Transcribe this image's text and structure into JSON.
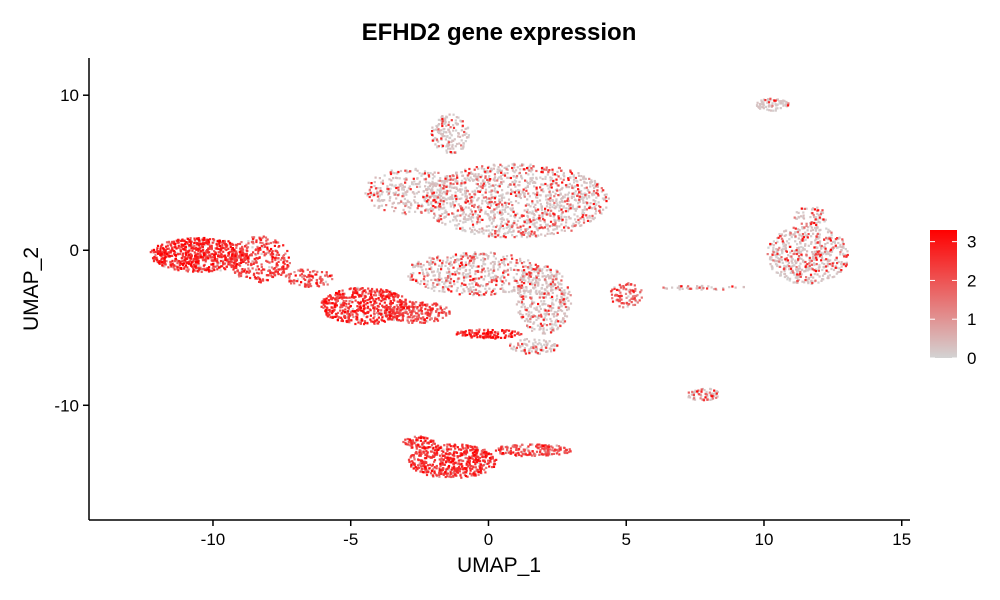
{
  "chart_data": {
    "type": "scatter",
    "title": "EFHD2 gene expression",
    "xlabel": "UMAP_1",
    "ylabel": "UMAP_2",
    "xlim": [
      -14.5,
      15.3
    ],
    "ylim": [
      -17.4,
      12.4
    ],
    "x_ticks": [
      -10,
      -5,
      0,
      5,
      10,
      15
    ],
    "y_ticks": [
      -10,
      0,
      10
    ],
    "x_tick_labels": [
      "-10",
      "-5",
      "0",
      "5",
      "10",
      "15"
    ],
    "y_tick_labels": [
      "-10",
      "0",
      "10"
    ],
    "grid": false,
    "color_scale": {
      "low_color": "#d3d3d3",
      "high_color": "#ff0000",
      "min": 0,
      "max": 3.3,
      "ticks": [
        0,
        1,
        2,
        3
      ],
      "tick_labels": [
        "0",
        "1",
        "2",
        "3"
      ],
      "position": "right"
    },
    "clusters": [
      {
        "label": "left-blob",
        "cx": -10.5,
        "cy": -0.3,
        "rx": 1.8,
        "ry": 1.1,
        "n": 700,
        "mean_expr": 2.5
      },
      {
        "label": "left-blob-tail",
        "cx": -8.3,
        "cy": -0.6,
        "rx": 1.1,
        "ry": 1.5,
        "n": 300,
        "mean_expr": 2.2
      },
      {
        "label": "bridge",
        "cx": -6.5,
        "cy": -1.8,
        "rx": 0.9,
        "ry": 0.6,
        "n": 100,
        "mean_expr": 2.0
      },
      {
        "label": "mid-left",
        "cx": -4.5,
        "cy": -3.6,
        "rx": 1.6,
        "ry": 1.2,
        "n": 520,
        "mean_expr": 2.4
      },
      {
        "label": "mid-left-2",
        "cx": -2.6,
        "cy": -4.0,
        "rx": 1.2,
        "ry": 0.7,
        "n": 220,
        "mean_expr": 2.0
      },
      {
        "label": "strip",
        "cx": 0.0,
        "cy": -5.4,
        "rx": 1.2,
        "ry": 0.3,
        "n": 120,
        "mean_expr": 2.6
      },
      {
        "label": "top-main",
        "cx": 1.0,
        "cy": 3.2,
        "rx": 3.4,
        "ry": 2.4,
        "n": 1300,
        "mean_expr": 0.45
      },
      {
        "label": "top-main-left",
        "cx": -2.8,
        "cy": 3.8,
        "rx": 1.7,
        "ry": 1.5,
        "n": 320,
        "mean_expr": 0.15
      },
      {
        "label": "top-spike",
        "cx": -1.4,
        "cy": 7.5,
        "rx": 0.7,
        "ry": 1.3,
        "n": 160,
        "mean_expr": 0.2
      },
      {
        "label": "center",
        "cx": -0.5,
        "cy": -1.5,
        "rx": 2.5,
        "ry": 1.4,
        "n": 520,
        "mean_expr": 0.8
      },
      {
        "label": "right-hook",
        "cx": 2.0,
        "cy": -3.2,
        "rx": 1.0,
        "ry": 2.2,
        "n": 400,
        "mean_expr": 0.3
      },
      {
        "label": "right-hook-bottom",
        "cx": 1.6,
        "cy": -6.2,
        "rx": 0.9,
        "ry": 0.5,
        "n": 90,
        "mean_expr": 0.2
      },
      {
        "label": "bottom-blob",
        "cx": -1.3,
        "cy": -13.6,
        "rx": 1.6,
        "ry": 1.1,
        "n": 550,
        "mean_expr": 2.3
      },
      {
        "label": "bottom-left",
        "cx": -2.5,
        "cy": -12.4,
        "rx": 0.6,
        "ry": 0.4,
        "n": 80,
        "mean_expr": 2.3
      },
      {
        "label": "bottom-tail",
        "cx": 1.6,
        "cy": -12.9,
        "rx": 1.4,
        "ry": 0.4,
        "n": 170,
        "mean_expr": 2.0
      },
      {
        "label": "right-cluster",
        "cx": 11.6,
        "cy": -0.3,
        "rx": 1.5,
        "ry": 1.9,
        "n": 540,
        "mean_expr": 0.5
      },
      {
        "label": "right-cluster-top",
        "cx": 11.7,
        "cy": 2.2,
        "rx": 0.6,
        "ry": 0.6,
        "n": 60,
        "mean_expr": 0.5
      },
      {
        "label": "top-right-small",
        "cx": 10.3,
        "cy": 9.4,
        "rx": 0.6,
        "ry": 0.4,
        "n": 80,
        "mean_expr": 0.1
      },
      {
        "label": "small-mid-right",
        "cx": 5.0,
        "cy": -2.9,
        "rx": 0.6,
        "ry": 0.8,
        "n": 90,
        "mean_expr": 1.8
      },
      {
        "label": "tiny-right",
        "cx": 7.8,
        "cy": -9.3,
        "rx": 0.6,
        "ry": 0.4,
        "n": 70,
        "mean_expr": 0.9
      },
      {
        "label": "thin-connector",
        "cx": 7.8,
        "cy": -2.4,
        "rx": 1.5,
        "ry": 0.15,
        "n": 40,
        "mean_expr": 0.6
      }
    ]
  }
}
